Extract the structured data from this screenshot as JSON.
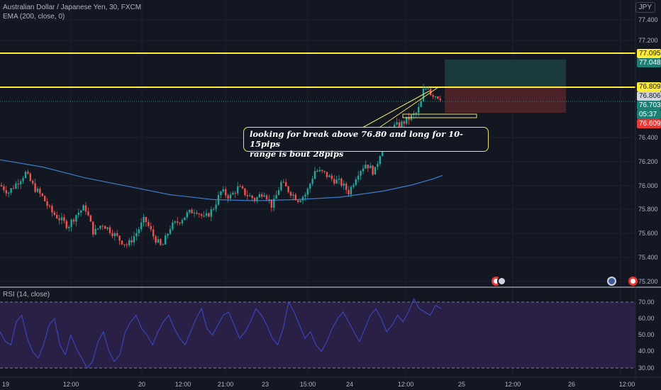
{
  "header": {
    "symbol_line": "Australian Dollar / Japanese Yen, 30, FXCM",
    "ema_line": "EMA (200, close, 0)",
    "currency": "JPY"
  },
  "rsi": {
    "label": "RSI (14, close)"
  },
  "annotation": {
    "line1": "looking for break above 76.80 and long for 10-15pips",
    "line2": "range is bout 28pips"
  },
  "price_axis": {
    "ticks": [
      "77.400",
      "77.200",
      "76.400",
      "76.200",
      "76.000",
      "75.800",
      "75.600",
      "75.400",
      "75.200"
    ],
    "tags": {
      "level_upper": "77.095",
      "target": "77.048",
      "level_lower": "76.809",
      "high": "76.806",
      "last": "76.703",
      "countdown": "05:37",
      "stop": "76.609"
    }
  },
  "rsi_axis": {
    "ticks": [
      "70.00",
      "60.00",
      "50.00",
      "40.00",
      "30.00"
    ]
  },
  "time_axis": {
    "ticks": [
      "19",
      "12:00",
      "20",
      "12:00",
      "21:00",
      "23",
      "15:00",
      "24",
      "12:00",
      "25",
      "12:00",
      "26",
      "12:00"
    ]
  },
  "colors": {
    "background": "#131722",
    "up": "#26a69a",
    "down": "#ef5350",
    "ema": "#3d7bc9",
    "horizontal_level": "#ffeb3b",
    "rsi": "#3b47c4",
    "rsi_band": "#2a1f44",
    "target_zone": "#1b3a3b",
    "stop_zone": "#4a2228"
  },
  "chart_data": {
    "type": "candlestick",
    "instrument": "AUDJPY",
    "timeframe": "30",
    "price_range": [
      75.18,
      77.5
    ],
    "horizontal_levels": [
      77.095,
      76.809
    ],
    "position": {
      "side": "long",
      "entry": 76.806,
      "target": 77.048,
      "stop": 76.609
    },
    "last_price": 76.703,
    "price_path": [
      [
        0,
        76.0
      ],
      [
        12,
        75.94
      ],
      [
        24,
        76.02
      ],
      [
        36,
        76.1
      ],
      [
        48,
        75.98
      ],
      [
        60,
        75.9
      ],
      [
        72,
        75.78
      ],
      [
        84,
        75.72
      ],
      [
        96,
        75.66
      ],
      [
        108,
        75.76
      ],
      [
        120,
        75.82
      ],
      [
        132,
        75.6
      ],
      [
        144,
        75.68
      ],
      [
        156,
        75.62
      ],
      [
        168,
        75.55
      ],
      [
        180,
        75.5
      ],
      [
        192,
        75.6
      ],
      [
        204,
        75.72
      ],
      [
        216,
        75.58
      ],
      [
        228,
        75.48
      ],
      [
        240,
        75.65
      ],
      [
        252,
        75.7
      ],
      [
        264,
        75.76
      ],
      [
        276,
        75.8
      ],
      [
        288,
        75.72
      ],
      [
        300,
        75.8
      ],
      [
        312,
        75.95
      ],
      [
        324,
        75.9
      ],
      [
        336,
        75.98
      ],
      [
        348,
        75.92
      ],
      [
        360,
        75.88
      ],
      [
        372,
        75.95
      ],
      [
        384,
        75.82
      ],
      [
        396,
        76.02
      ],
      [
        408,
        75.95
      ],
      [
        420,
        75.88
      ],
      [
        432,
        75.93
      ],
      [
        444,
        76.12
      ],
      [
        456,
        76.1
      ],
      [
        468,
        76.05
      ],
      [
        480,
        76.02
      ],
      [
        492,
        75.94
      ],
      [
        504,
        76.1
      ],
      [
        516,
        76.18
      ],
      [
        528,
        76.1
      ],
      [
        540,
        76.35
      ],
      [
        552,
        76.48
      ],
      [
        564,
        76.5
      ],
      [
        576,
        76.55
      ],
      [
        588,
        76.6
      ],
      [
        600,
        76.78
      ],
      [
        612,
        76.75
      ],
      [
        624,
        76.72
      ]
    ],
    "ema_path": [
      [
        0,
        76.21
      ],
      [
        60,
        76.15
      ],
      [
        120,
        76.06
      ],
      [
        180,
        75.99
      ],
      [
        240,
        75.92
      ],
      [
        300,
        75.88
      ],
      [
        360,
        75.87
      ],
      [
        420,
        75.88
      ],
      [
        480,
        75.9
      ],
      [
        540,
        75.95
      ],
      [
        580,
        76.0
      ],
      [
        610,
        76.05
      ],
      [
        624,
        76.08
      ]
    ],
    "rsi_levels": {
      "upper": 70,
      "lower": 30
    },
    "rsi_range": [
      25,
      75
    ],
    "rsi_values": [
      52,
      46,
      44,
      58,
      62,
      48,
      40,
      36,
      44,
      56,
      60,
      44,
      38,
      50,
      42,
      36,
      30,
      34,
      46,
      52,
      40,
      34,
      38,
      52,
      58,
      62,
      54,
      50,
      44,
      52,
      58,
      62,
      54,
      48,
      44,
      52,
      60,
      66,
      54,
      50,
      56,
      62,
      64,
      56,
      48,
      52,
      58,
      66,
      62,
      56,
      48,
      44,
      54,
      70,
      64,
      56,
      48,
      52,
      44,
      40,
      46,
      54,
      60,
      64,
      58,
      52,
      46,
      54,
      62,
      66,
      60,
      52,
      56,
      62,
      58,
      64,
      72,
      66,
      64,
      62,
      68,
      66
    ],
    "xlabel": "",
    "ylabel": ""
  }
}
